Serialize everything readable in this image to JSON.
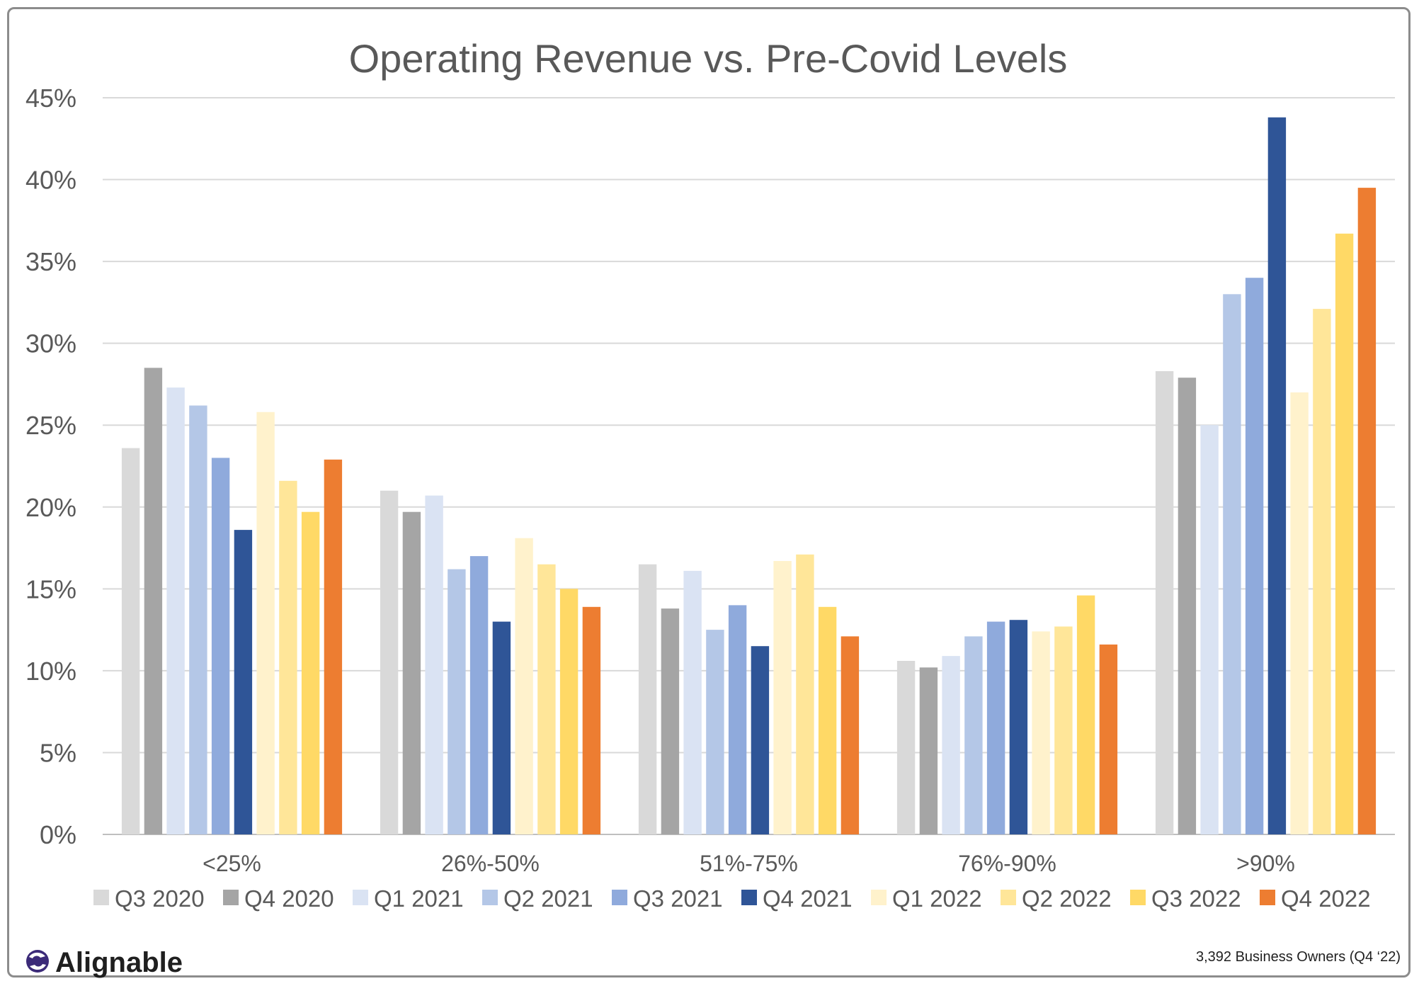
{
  "chart_data": {
    "type": "bar",
    "title": "Operating Revenue vs. Pre-Covid Levels",
    "xlabel": "",
    "ylabel": "",
    "ylim": [
      0,
      45
    ],
    "yticks": [
      "0%",
      "5%",
      "10%",
      "15%",
      "20%",
      "25%",
      "30%",
      "35%",
      "40%",
      "45%"
    ],
    "grid": true,
    "legend_position": "bottom",
    "categories": [
      "<25%",
      "26%-50%",
      "51%-75%",
      "76%-90%",
      ">90%"
    ],
    "series": [
      {
        "name": "Q3 2020",
        "color": "#d9d9d9",
        "values": [
          23.6,
          21.0,
          16.5,
          10.6,
          28.3
        ]
      },
      {
        "name": "Q4 2020",
        "color": "#a5a5a5",
        "values": [
          28.5,
          19.7,
          13.8,
          10.2,
          27.9
        ]
      },
      {
        "name": "Q1 2021",
        "color": "#dae3f3",
        "values": [
          27.3,
          20.7,
          16.1,
          10.9,
          25.0
        ]
      },
      {
        "name": "Q2 2021",
        "color": "#b4c7e7",
        "values": [
          26.2,
          16.2,
          12.5,
          12.1,
          33.0
        ]
      },
      {
        "name": "Q3 2021",
        "color": "#8faadc",
        "values": [
          23.0,
          17.0,
          14.0,
          13.0,
          34.0
        ]
      },
      {
        "name": "Q4 2021",
        "color": "#2f5597",
        "values": [
          18.6,
          13.0,
          11.5,
          13.1,
          43.8
        ]
      },
      {
        "name": "Q1 2022",
        "color": "#fff2cc",
        "values": [
          25.8,
          18.1,
          16.7,
          12.4,
          27.0
        ]
      },
      {
        "name": "Q2 2022",
        "color": "#ffe699",
        "values": [
          21.6,
          16.5,
          17.1,
          12.7,
          32.1
        ]
      },
      {
        "name": "Q3 2022",
        "color": "#ffd966",
        "values": [
          19.7,
          15.0,
          13.9,
          14.6,
          36.7
        ]
      },
      {
        "name": "Q4 2022",
        "color": "#ed7d31",
        "values": [
          22.9,
          13.9,
          12.1,
          11.6,
          39.5
        ]
      }
    ]
  },
  "branding": {
    "logo_text": "Alignable",
    "footnote": "3,392 Business Owners (Q4 ‘22)"
  }
}
